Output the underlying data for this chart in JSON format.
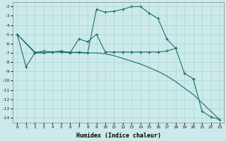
{
  "xlabel": "Humidex (Indice chaleur)",
  "bg_color": "#cceaea",
  "grid_color": "#aad4d4",
  "line_color": "#1a6e6e",
  "xlim": [
    -0.5,
    23.5
  ],
  "ylim": [
    -14.5,
    -1.5
  ],
  "yticks": [
    -2,
    -3,
    -4,
    -5,
    -6,
    -7,
    -8,
    -9,
    -10,
    -11,
    -12,
    -13,
    -14
  ],
  "xticks": [
    0,
    1,
    2,
    3,
    4,
    5,
    6,
    7,
    8,
    9,
    10,
    11,
    12,
    13,
    14,
    15,
    16,
    17,
    18,
    19,
    20,
    21,
    22,
    23
  ],
  "lines": [
    {
      "x": [
        0,
        1,
        2,
        3,
        4,
        5,
        6,
        7,
        8,
        9,
        10,
        11,
        12,
        13,
        14,
        15,
        16,
        17,
        18
      ],
      "y": [
        -5.0,
        -8.5,
        -7.0,
        -6.8,
        -6.9,
        -6.9,
        -7.0,
        -6.9,
        -7.0,
        -2.3,
        -2.6,
        -2.5,
        -2.3,
        -2.0,
        -2.0,
        -2.7,
        -3.3,
        -5.5,
        -6.5
      ],
      "marker": true
    },
    {
      "x": [
        0,
        2,
        3,
        4,
        5,
        6,
        7,
        8,
        9,
        10,
        11,
        12,
        13,
        14,
        15,
        16,
        17,
        18,
        19,
        20
      ],
      "y": [
        -5.0,
        -7.0,
        -7.0,
        -6.9,
        -6.8,
        -7.0,
        -5.5,
        -5.8,
        -5.0,
        -6.9,
        -6.9,
        -6.9,
        -6.9,
        -6.9,
        -6.9,
        -6.9,
        -6.8,
        -6.5,
        -9.2,
        -9.8
      ],
      "marker": true
    },
    {
      "x": [
        0,
        2,
        3,
        4,
        5,
        6,
        7,
        8,
        9,
        10,
        11,
        12,
        13,
        14,
        15,
        16,
        17,
        18,
        19,
        20,
        21,
        22,
        23
      ],
      "y": [
        -5.0,
        -6.9,
        -7.0,
        -6.9,
        -6.9,
        -6.9,
        -7.0,
        -7.0,
        -7.0,
        -7.1,
        -7.3,
        -7.6,
        -7.9,
        -8.2,
        -8.6,
        -9.0,
        -9.5,
        -10.1,
        -10.8,
        -11.5,
        -12.4,
        -13.3,
        -14.2
      ],
      "marker": false
    },
    {
      "x": [
        20,
        21,
        22,
        23
      ],
      "y": [
        -9.8,
        -13.3,
        -13.9,
        -14.2
      ],
      "marker": true
    }
  ]
}
